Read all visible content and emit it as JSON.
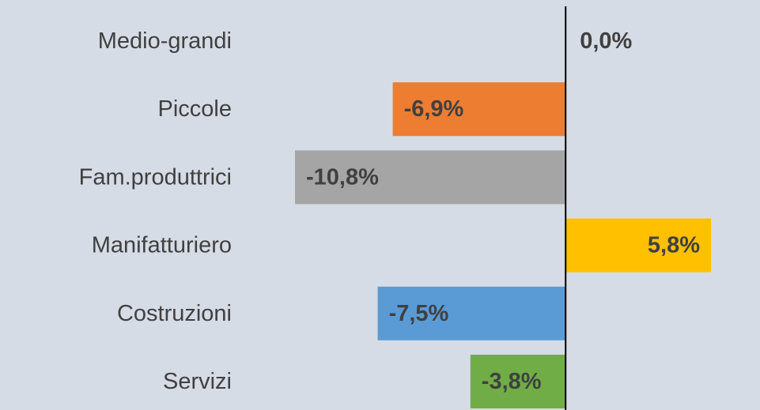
{
  "chart_data": {
    "type": "bar",
    "orientation": "horizontal",
    "categories": [
      "Medio-grandi",
      "Piccole",
      "Fam.produttrici",
      "Manifatturiero",
      "Costruzioni",
      "Servizi"
    ],
    "values": [
      0.0,
      -6.9,
      -10.8,
      5.8,
      -7.5,
      -3.8
    ],
    "value_labels": [
      "0,0%",
      "-6,9%",
      "-10,8%",
      "5,8%",
      "-7,5%",
      "-3,8%"
    ],
    "colors": [
      "#4472c4",
      "#ed7d31",
      "#a5a5a5",
      "#ffc000",
      "#5b9bd5",
      "#70ad47"
    ]
  }
}
